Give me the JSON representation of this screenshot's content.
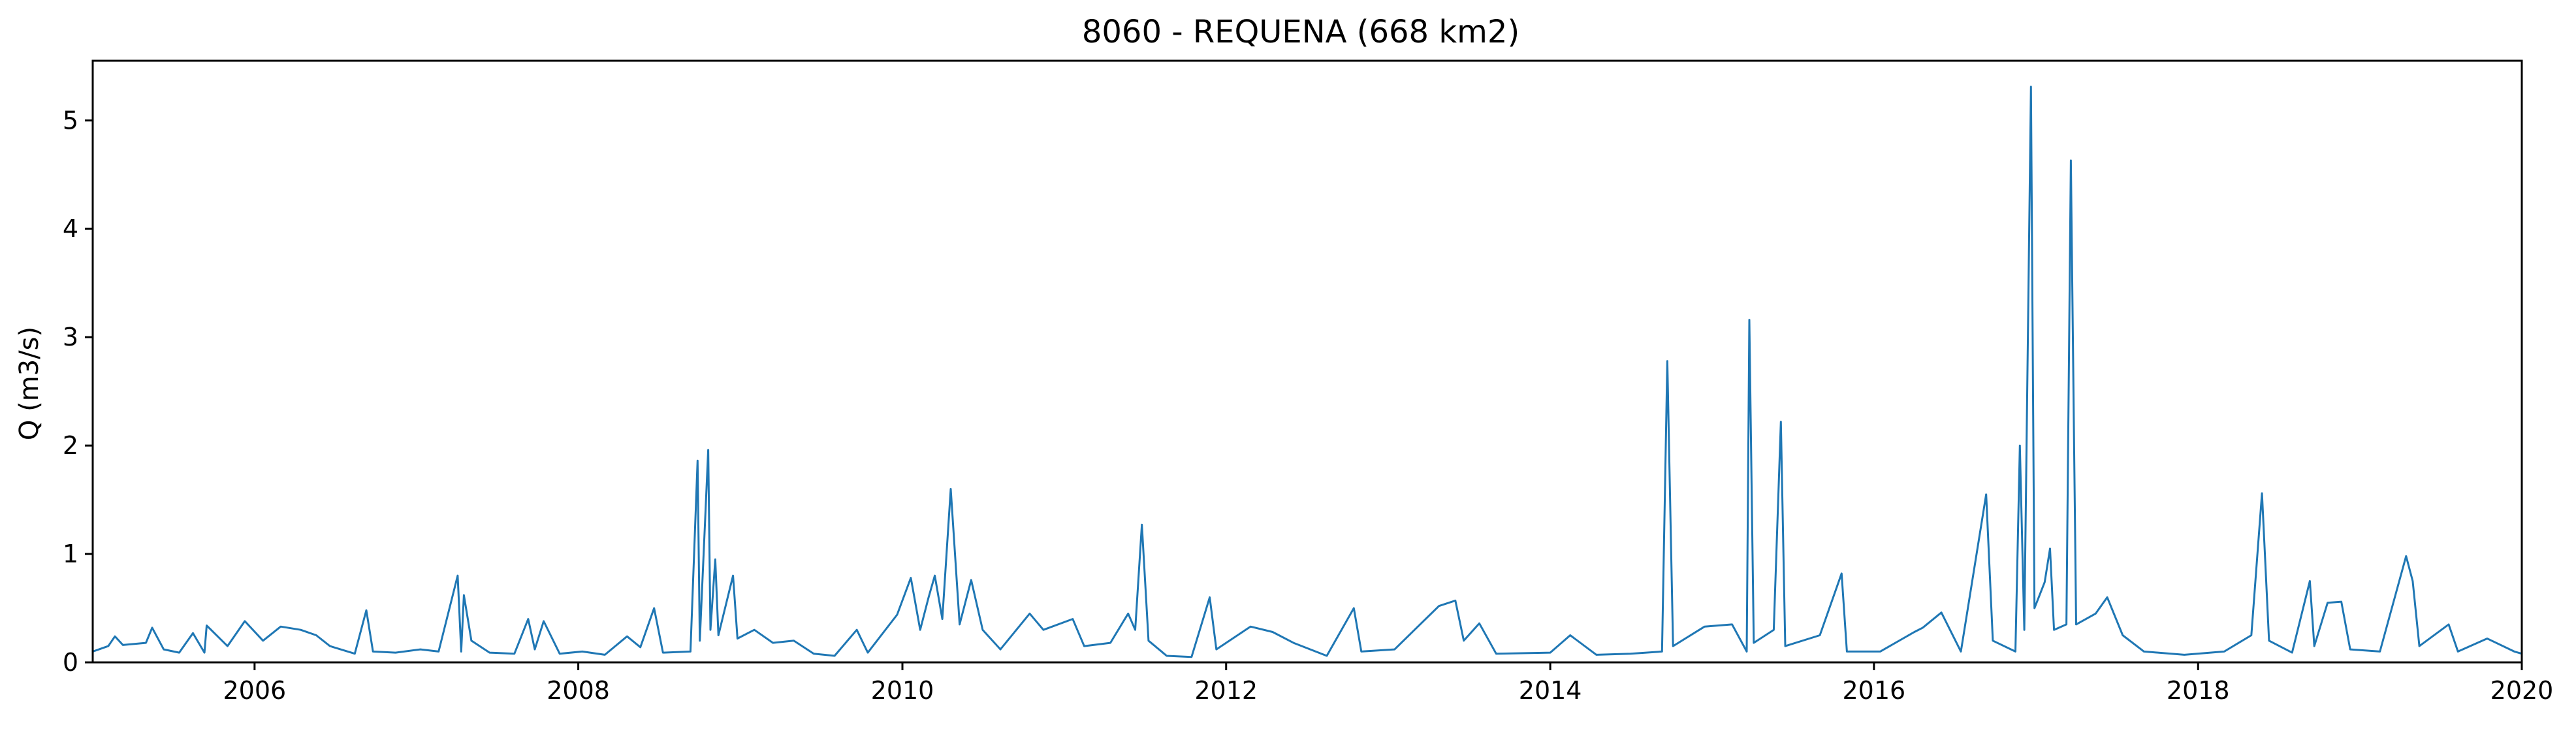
{
  "chart_data": {
    "type": "line",
    "title": "8060 - REQUENA (668 km2)",
    "xlabel": "",
    "ylabel": "Q (m3/s)",
    "xlim": [
      "2005-01-01",
      "2020-01-01"
    ],
    "ylim": [
      0,
      5.55
    ],
    "grid": false,
    "x_ticks": [
      "2006",
      "2008",
      "2010",
      "2012",
      "2014",
      "2016",
      "2018",
      "2020"
    ],
    "y_ticks": [
      "0",
      "1",
      "2",
      "3",
      "4",
      "5"
    ],
    "series": [
      {
        "color": "#1f77b4",
        "points": [
          [
            "2005-01-01",
            0.1
          ],
          [
            "2005-02-05",
            0.15
          ],
          [
            "2005-02-20",
            0.24
          ],
          [
            "2005-03-10",
            0.16
          ],
          [
            "2005-05-01",
            0.18
          ],
          [
            "2005-05-15",
            0.32
          ],
          [
            "2005-06-10",
            0.12
          ],
          [
            "2005-07-15",
            0.09
          ],
          [
            "2005-08-15",
            0.27
          ],
          [
            "2005-09-10",
            0.09
          ],
          [
            "2005-09-15",
            0.34
          ],
          [
            "2005-11-01",
            0.15
          ],
          [
            "2005-12-10",
            0.38
          ],
          [
            "2006-01-20",
            0.2
          ],
          [
            "2006-03-01",
            0.33
          ],
          [
            "2006-04-15",
            0.3
          ],
          [
            "2006-05-20",
            0.25
          ],
          [
            "2006-06-20",
            0.15
          ],
          [
            "2006-08-15",
            0.08
          ],
          [
            "2006-09-10",
            0.48
          ],
          [
            "2006-09-25",
            0.1
          ],
          [
            "2006-11-15",
            0.09
          ],
          [
            "2007-01-10",
            0.12
          ],
          [
            "2007-02-20",
            0.1
          ],
          [
            "2007-04-04",
            0.8
          ],
          [
            "2007-04-12",
            0.1
          ],
          [
            "2007-04-18",
            0.62
          ],
          [
            "2007-05-05",
            0.2
          ],
          [
            "2007-06-15",
            0.09
          ],
          [
            "2007-08-10",
            0.08
          ],
          [
            "2007-09-10",
            0.4
          ],
          [
            "2007-09-25",
            0.12
          ],
          [
            "2007-10-15",
            0.38
          ],
          [
            "2007-11-20",
            0.08
          ],
          [
            "2008-01-10",
            0.1
          ],
          [
            "2008-03-01",
            0.07
          ],
          [
            "2008-04-20",
            0.24
          ],
          [
            "2008-05-20",
            0.14
          ],
          [
            "2008-06-20",
            0.5
          ],
          [
            "2008-07-10",
            0.09
          ],
          [
            "2008-09-10",
            0.1
          ],
          [
            "2008-09-26",
            1.86
          ],
          [
            "2008-10-01",
            0.2
          ],
          [
            "2008-10-20",
            1.96
          ],
          [
            "2008-10-25",
            0.3
          ],
          [
            "2008-11-05",
            0.95
          ],
          [
            "2008-11-12",
            0.25
          ],
          [
            "2008-12-15",
            0.8
          ],
          [
            "2008-12-25",
            0.22
          ],
          [
            "2009-02-01",
            0.3
          ],
          [
            "2009-03-15",
            0.18
          ],
          [
            "2009-05-01",
            0.2
          ],
          [
            "2009-06-15",
            0.08
          ],
          [
            "2009-08-01",
            0.06
          ],
          [
            "2009-09-20",
            0.3
          ],
          [
            "2009-10-15",
            0.09
          ],
          [
            "2009-12-20",
            0.44
          ],
          [
            "2010-01-20",
            0.78
          ],
          [
            "2010-02-10",
            0.3
          ],
          [
            "2010-03-01",
            0.6
          ],
          [
            "2010-03-15",
            0.8
          ],
          [
            "2010-04-01",
            0.4
          ],
          [
            "2010-04-20",
            1.6
          ],
          [
            "2010-05-10",
            0.35
          ],
          [
            "2010-06-05",
            0.76
          ],
          [
            "2010-07-01",
            0.3
          ],
          [
            "2010-08-10",
            0.12
          ],
          [
            "2010-10-15",
            0.45
          ],
          [
            "2010-11-15",
            0.3
          ],
          [
            "2011-01-20",
            0.4
          ],
          [
            "2011-02-15",
            0.15
          ],
          [
            "2011-04-15",
            0.18
          ],
          [
            "2011-05-25",
            0.45
          ],
          [
            "2011-06-10",
            0.3
          ],
          [
            "2011-06-25",
            1.27
          ],
          [
            "2011-07-10",
            0.2
          ],
          [
            "2011-08-20",
            0.06
          ],
          [
            "2011-10-15",
            0.05
          ],
          [
            "2011-11-25",
            0.6
          ],
          [
            "2011-12-10",
            0.12
          ],
          [
            "2012-02-25",
            0.33
          ],
          [
            "2012-04-15",
            0.28
          ],
          [
            "2012-06-01",
            0.18
          ],
          [
            "2012-08-15",
            0.06
          ],
          [
            "2012-10-15",
            0.5
          ],
          [
            "2012-11-01",
            0.1
          ],
          [
            "2013-01-15",
            0.12
          ],
          [
            "2013-03-01",
            0.3
          ],
          [
            "2013-04-25",
            0.52
          ],
          [
            "2013-06-01",
            0.57
          ],
          [
            "2013-06-20",
            0.2
          ],
          [
            "2013-07-25",
            0.36
          ],
          [
            "2013-09-01",
            0.08
          ],
          [
            "2014-01-01",
            0.09
          ],
          [
            "2014-02-15",
            0.25
          ],
          [
            "2014-04-15",
            0.07
          ],
          [
            "2014-07-01",
            0.08
          ],
          [
            "2014-09-10",
            0.1
          ],
          [
            "2014-09-22",
            2.78
          ],
          [
            "2014-10-05",
            0.15
          ],
          [
            "2014-12-15",
            0.33
          ],
          [
            "2015-02-15",
            0.35
          ],
          [
            "2015-03-20",
            0.1
          ],
          [
            "2015-03-26",
            3.16
          ],
          [
            "2015-04-05",
            0.18
          ],
          [
            "2015-05-20",
            0.3
          ],
          [
            "2015-06-05",
            2.22
          ],
          [
            "2015-06-15",
            0.15
          ],
          [
            "2015-09-01",
            0.25
          ],
          [
            "2015-10-20",
            0.82
          ],
          [
            "2015-11-01",
            0.1
          ],
          [
            "2016-01-15",
            0.1
          ],
          [
            "2016-04-01",
            0.28
          ],
          [
            "2016-04-20",
            0.32
          ],
          [
            "2016-06-01",
            0.46
          ],
          [
            "2016-07-15",
            0.1
          ],
          [
            "2016-09-10",
            1.55
          ],
          [
            "2016-09-25",
            0.2
          ],
          [
            "2016-11-15",
            0.1
          ],
          [
            "2016-11-25",
            2.0
          ],
          [
            "2016-12-05",
            0.3
          ],
          [
            "2016-12-20",
            5.31
          ],
          [
            "2016-12-28",
            0.5
          ],
          [
            "2017-01-20",
            0.74
          ],
          [
            "2017-02-01",
            1.05
          ],
          [
            "2017-02-10",
            0.3
          ],
          [
            "2017-03-10",
            0.35
          ],
          [
            "2017-03-20",
            4.63
          ],
          [
            "2017-04-01",
            0.35
          ],
          [
            "2017-05-15",
            0.45
          ],
          [
            "2017-06-10",
            0.6
          ],
          [
            "2017-07-15",
            0.25
          ],
          [
            "2017-09-01",
            0.1
          ],
          [
            "2017-12-01",
            0.07
          ],
          [
            "2018-03-01",
            0.1
          ],
          [
            "2018-05-01",
            0.25
          ],
          [
            "2018-05-25",
            1.56
          ],
          [
            "2018-06-10",
            0.2
          ],
          [
            "2018-08-01",
            0.09
          ],
          [
            "2018-09-10",
            0.75
          ],
          [
            "2018-09-20",
            0.15
          ],
          [
            "2018-10-20",
            0.55
          ],
          [
            "2018-11-20",
            0.56
          ],
          [
            "2018-12-10",
            0.12
          ],
          [
            "2019-02-15",
            0.1
          ],
          [
            "2019-04-15",
            0.98
          ],
          [
            "2019-04-30",
            0.75
          ],
          [
            "2019-05-15",
            0.15
          ],
          [
            "2019-07-20",
            0.35
          ],
          [
            "2019-08-10",
            0.1
          ],
          [
            "2019-10-15",
            0.22
          ],
          [
            "2019-12-15",
            0.1
          ],
          [
            "2020-01-01",
            0.08
          ]
        ]
      }
    ]
  }
}
